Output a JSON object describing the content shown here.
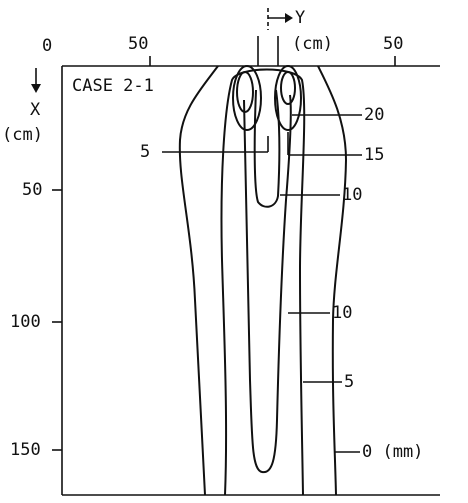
{
  "figure": {
    "top_axis": {
      "ticks": [
        "0",
        "50",
        "50"
      ],
      "name": "Y",
      "unit": "(cm)"
    },
    "left_axis": {
      "ticks": [
        "50",
        "100",
        "150"
      ],
      "name": "X",
      "unit": "(cm)"
    },
    "case": "CASE 2-1",
    "contour_labels": [
      "20",
      "5",
      "15",
      "10",
      "10",
      "5",
      "0 (mm)"
    ]
  }
}
